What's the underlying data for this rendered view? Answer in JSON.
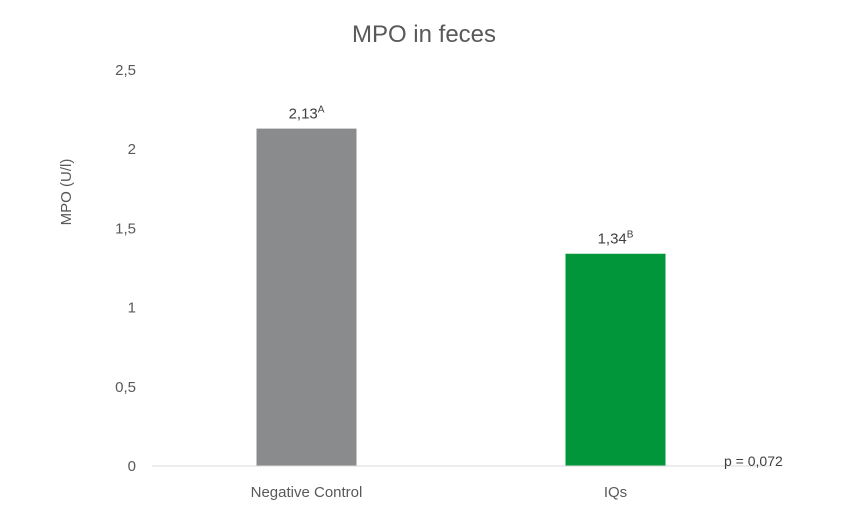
{
  "chart_data": {
    "type": "bar",
    "title": "MPO in feces",
    "ylabel": "MPO (U/l)",
    "xlabel": "",
    "ylim": [
      0,
      2.5
    ],
    "ytick_labels": [
      "0",
      "0,5",
      "1",
      "1,5",
      "2",
      "2,5"
    ],
    "yticks": [
      0,
      0.5,
      1,
      1.5,
      2,
      2.5
    ],
    "categories": [
      "Negative Control",
      "IQs"
    ],
    "values": [
      2.13,
      1.34
    ],
    "data_labels": [
      "2,13",
      "1,34"
    ],
    "data_label_letters": [
      "A",
      "B"
    ],
    "bar_colors": [
      "#898b8c",
      "#02963a"
    ],
    "grid": false,
    "legend": "none",
    "annotation": "p = 0,072"
  }
}
